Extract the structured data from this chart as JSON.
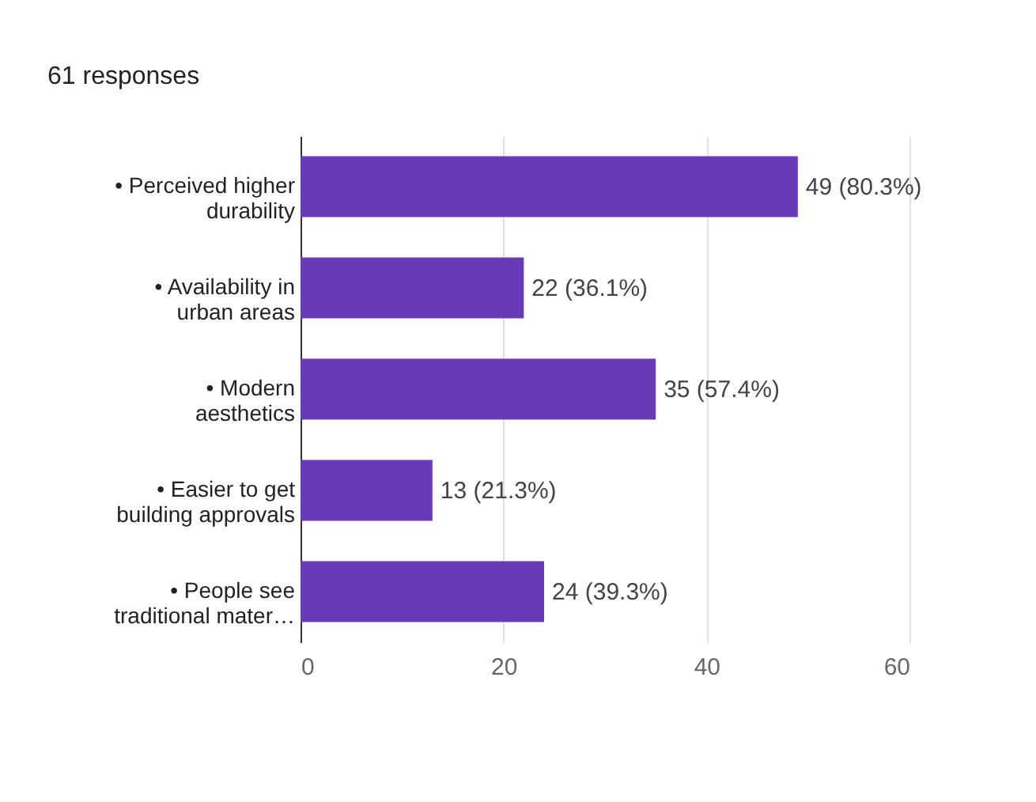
{
  "chart_data": {
    "type": "bar",
    "orientation": "horizontal",
    "title": "61 responses",
    "categories": [
      "• Perceived higher durability",
      "• Availability in urban areas",
      "• Modern aesthetics",
      "• Easier to get building approvals",
      "• People see traditional mater…"
    ],
    "values": [
      49,
      22,
      35,
      13,
      24
    ],
    "value_labels": [
      "49 (80.3%)",
      "22 (36.1%)",
      "35 (57.4%)",
      "13 (21.3%)",
      "24 (39.3%)"
    ],
    "color": "#673ab7",
    "xlim": [
      0,
      60
    ],
    "xticks": [
      0,
      20,
      40,
      60
    ],
    "grid": "x"
  }
}
